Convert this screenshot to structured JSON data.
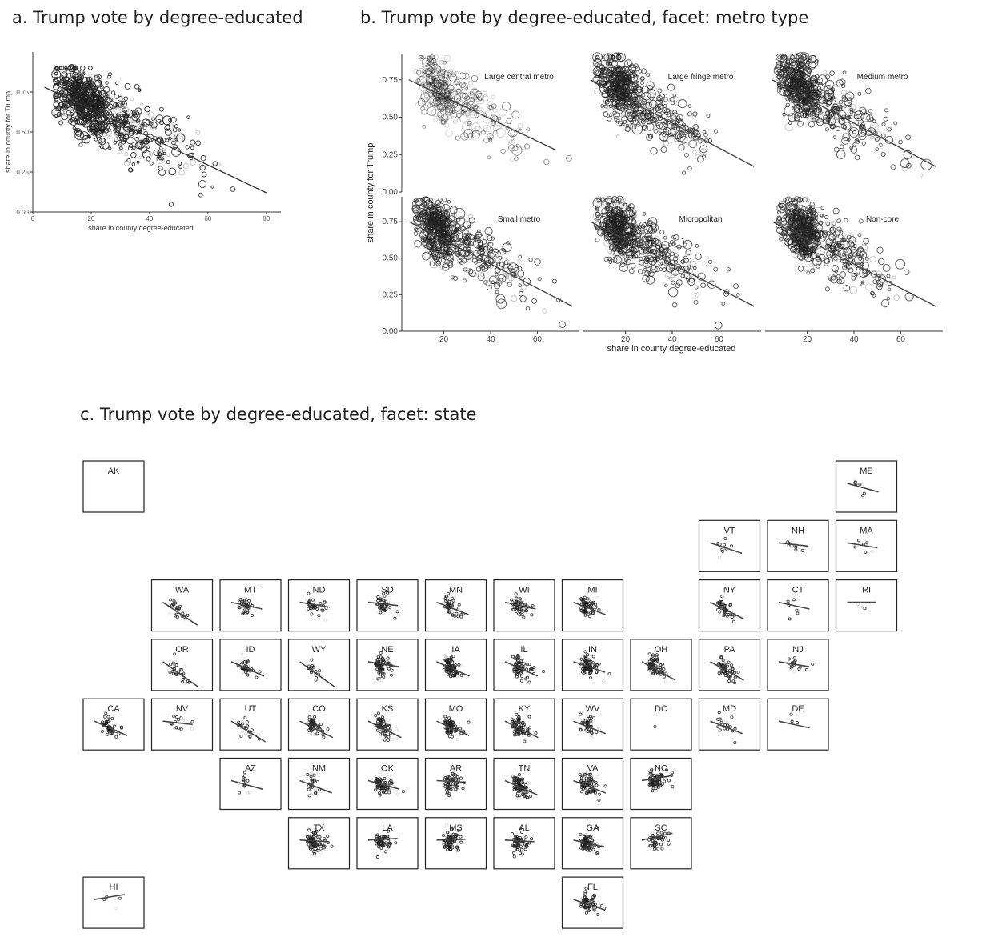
{
  "titles": {
    "a": "a. Trump vote by degree-educated",
    "b": "b. Trump vote by degree-educated, facet: metro type",
    "c": "c. Trump vote by degree-educated, facet: state"
  },
  "chart_data": [
    {
      "id": "a",
      "type": "scatter",
      "title": "a. Trump vote by degree-educated",
      "xlabel": "share in county degree-educated",
      "ylabel": "share in county for Trump",
      "xlim": [
        0,
        85
      ],
      "ylim": [
        0,
        1.0
      ],
      "x_ticks": [
        "0",
        "20",
        "40",
        "60",
        "80"
      ],
      "y_ticks": [
        "0.00",
        "0.25",
        "0.50",
        "0.75"
      ],
      "trend_line": {
        "x": [
          4,
          80
        ],
        "y": [
          0.78,
          0.12
        ]
      },
      "grid": false
    },
    {
      "id": "b",
      "type": "scatter",
      "title": "b. Trump vote by degree-educated, facet: metro type",
      "xlabel": "share in county degree-educated",
      "ylabel": "share in county for Trump",
      "xlim": [
        2,
        78
      ],
      "ylim": [
        0,
        0.92
      ],
      "x_ticks": [
        "20",
        "40",
        "60"
      ],
      "y_ticks": [
        "0.00",
        "0.25",
        "0.50",
        "0.75"
      ],
      "grid": false,
      "facets": [
        {
          "label": "Large central metro",
          "trend_line": {
            "x": [
              5,
              68
            ],
            "y": [
              0.75,
              0.28
            ]
          }
        },
        {
          "label": "Large fringe metro",
          "trend_line": {
            "x": [
              5,
              75
            ],
            "y": [
              0.75,
              0.17
            ]
          }
        },
        {
          "label": "Medium metro",
          "trend_line": {
            "x": [
              5,
              75
            ],
            "y": [
              0.75,
              0.17
            ]
          }
        },
        {
          "label": "Small metro",
          "trend_line": {
            "x": [
              5,
              75
            ],
            "y": [
              0.75,
              0.17
            ]
          }
        },
        {
          "label": "Micropolitan",
          "trend_line": {
            "x": [
              5,
              75
            ],
            "y": [
              0.75,
              0.17
            ]
          }
        },
        {
          "label": "Non-core",
          "trend_line": {
            "x": [
              5,
              75
            ],
            "y": [
              0.75,
              0.17
            ]
          }
        }
      ]
    },
    {
      "id": "c",
      "type": "scatter",
      "title": "c. Trump vote by degree-educated, facet: state",
      "states": [
        {
          "abbr": "AK",
          "row": 0,
          "col": 0,
          "slope": 0,
          "n": 0
        },
        {
          "abbr": "ME",
          "row": 0,
          "col": 11,
          "slope": -0.5,
          "n": 8
        },
        {
          "abbr": "VT",
          "row": 1,
          "col": 9,
          "slope": -0.6,
          "n": 10
        },
        {
          "abbr": "NH",
          "row": 1,
          "col": 10,
          "slope": -0.2,
          "n": 8
        },
        {
          "abbr": "MA",
          "row": 1,
          "col": 11,
          "slope": -0.3,
          "n": 10
        },
        {
          "abbr": "WA",
          "row": 2,
          "col": 1,
          "slope": -1.2,
          "n": 30
        },
        {
          "abbr": "MT",
          "row": 2,
          "col": 2,
          "slope": -0.4,
          "n": 40
        },
        {
          "abbr": "ND",
          "row": 2,
          "col": 3,
          "slope": -0.3,
          "n": 40
        },
        {
          "abbr": "SD",
          "row": 2,
          "col": 4,
          "slope": -0.2,
          "n": 50
        },
        {
          "abbr": "MN",
          "row": 2,
          "col": 5,
          "slope": -0.7,
          "n": 60
        },
        {
          "abbr": "WI",
          "row": 2,
          "col": 6,
          "slope": -0.4,
          "n": 60
        },
        {
          "abbr": "MI",
          "row": 2,
          "col": 7,
          "slope": -0.7,
          "n": 70
        },
        {
          "abbr": "NY",
          "row": 2,
          "col": 9,
          "slope": -0.9,
          "n": 50
        },
        {
          "abbr": "CT",
          "row": 2,
          "col": 10,
          "slope": -0.4,
          "n": 8
        },
        {
          "abbr": "RI",
          "row": 2,
          "col": 11,
          "slope": 0,
          "n": 4
        },
        {
          "abbr": "OR",
          "row": 3,
          "col": 1,
          "slope": -1.5,
          "n": 30
        },
        {
          "abbr": "ID",
          "row": 3,
          "col": 2,
          "slope": -0.8,
          "n": 40
        },
        {
          "abbr": "WY",
          "row": 3,
          "col": 3,
          "slope": -1.4,
          "n": 20
        },
        {
          "abbr": "NE",
          "row": 3,
          "col": 4,
          "slope": -0.3,
          "n": 80
        },
        {
          "abbr": "IA",
          "row": 3,
          "col": 5,
          "slope": -0.8,
          "n": 90
        },
        {
          "abbr": "IL",
          "row": 3,
          "col": 6,
          "slope": -0.8,
          "n": 90
        },
        {
          "abbr": "IN",
          "row": 3,
          "col": 7,
          "slope": -0.6,
          "n": 90
        },
        {
          "abbr": "OH",
          "row": 3,
          "col": 8,
          "slope": -1.0,
          "n": 80
        },
        {
          "abbr": "PA",
          "row": 3,
          "col": 9,
          "slope": -1.0,
          "n": 60
        },
        {
          "abbr": "NJ",
          "row": 3,
          "col": 10,
          "slope": -0.3,
          "n": 20
        },
        {
          "abbr": "CA",
          "row": 4,
          "col": 0,
          "slope": -0.8,
          "n": 50
        },
        {
          "abbr": "NV",
          "row": 4,
          "col": 1,
          "slope": -0.2,
          "n": 16
        },
        {
          "abbr": "UT",
          "row": 4,
          "col": 2,
          "slope": -1.1,
          "n": 30
        },
        {
          "abbr": "CO",
          "row": 4,
          "col": 3,
          "slope": -0.9,
          "n": 60
        },
        {
          "abbr": "KS",
          "row": 4,
          "col": 4,
          "slope": -0.9,
          "n": 100
        },
        {
          "abbr": "MO",
          "row": 4,
          "col": 5,
          "slope": -0.8,
          "n": 110
        },
        {
          "abbr": "KY",
          "row": 4,
          "col": 6,
          "slope": -0.9,
          "n": 110
        },
        {
          "abbr": "WV",
          "row": 4,
          "col": 7,
          "slope": -0.7,
          "n": 50
        },
        {
          "abbr": "DC",
          "row": 4,
          "col": 8,
          "slope": 0,
          "n": 1
        },
        {
          "abbr": "MD",
          "row": 4,
          "col": 9,
          "slope": -0.7,
          "n": 24
        },
        {
          "abbr": "DE",
          "row": 4,
          "col": 10,
          "slope": -0.4,
          "n": 3
        },
        {
          "abbr": "AZ",
          "row": 5,
          "col": 2,
          "slope": -0.5,
          "n": 15
        },
        {
          "abbr": "NM",
          "row": 5,
          "col": 3,
          "slope": -0.7,
          "n": 30
        },
        {
          "abbr": "OK",
          "row": 5,
          "col": 4,
          "slope": -0.5,
          "n": 75
        },
        {
          "abbr": "AR",
          "row": 5,
          "col": 5,
          "slope": -0.1,
          "n": 75
        },
        {
          "abbr": "TN",
          "row": 5,
          "col": 6,
          "slope": -0.8,
          "n": 95
        },
        {
          "abbr": "VA",
          "row": 5,
          "col": 7,
          "slope": -0.7,
          "n": 130
        },
        {
          "abbr": "NC",
          "row": 5,
          "col": 8,
          "slope": 0.3,
          "n": 100
        },
        {
          "abbr": "TX",
          "row": 6,
          "col": 3,
          "slope": -0.1,
          "n": 250
        },
        {
          "abbr": "LA",
          "row": 6,
          "col": 4,
          "slope": 0.1,
          "n": 64
        },
        {
          "abbr": "MS",
          "row": 6,
          "col": 5,
          "slope": 0.05,
          "n": 82
        },
        {
          "abbr": "AL",
          "row": 6,
          "col": 6,
          "slope": -0.1,
          "n": 67
        },
        {
          "abbr": "GA",
          "row": 6,
          "col": 7,
          "slope": -0.4,
          "n": 159
        },
        {
          "abbr": "SC",
          "row": 6,
          "col": 8,
          "slope": 0.4,
          "n": 46
        },
        {
          "abbr": "HI",
          "row": 7,
          "col": 0,
          "slope": 0.3,
          "n": 4
        },
        {
          "abbr": "FL",
          "row": 7,
          "col": 7,
          "slope": -0.6,
          "n": 67
        }
      ]
    }
  ]
}
